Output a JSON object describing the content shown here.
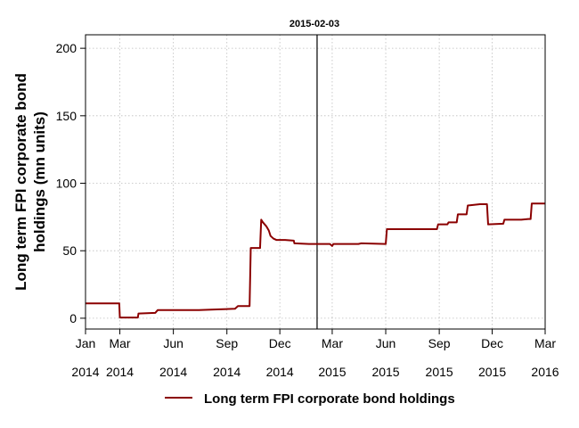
{
  "chart_data": {
    "type": "line",
    "title": "2015-02-03",
    "ylabel_lines": [
      "Long term FPI corporate bond",
      "holdings (mn units)"
    ],
    "ylim": [
      -8,
      210
    ],
    "y_ticks": [
      0,
      50,
      100,
      150,
      200
    ],
    "xlim": [
      "2014-01-01",
      "2016-03-01"
    ],
    "x_ticks": [
      {
        "date": "2014-01-01",
        "month": "Jan",
        "year": "2014"
      },
      {
        "date": "2014-03-01",
        "month": "Mar",
        "year": "2014"
      },
      {
        "date": "2014-06-01",
        "month": "Jun",
        "year": "2014"
      },
      {
        "date": "2014-09-01",
        "month": "Sep",
        "year": "2014"
      },
      {
        "date": "2014-12-01",
        "month": "Dec",
        "year": "2014"
      },
      {
        "date": "2015-03-01",
        "month": "Mar",
        "year": "2015"
      },
      {
        "date": "2015-06-01",
        "month": "Jun",
        "year": "2015"
      },
      {
        "date": "2015-09-01",
        "month": "Sep",
        "year": "2015"
      },
      {
        "date": "2015-12-01",
        "month": "Dec",
        "year": "2015"
      },
      {
        "date": "2016-03-01",
        "month": "Mar",
        "year": "2016"
      }
    ],
    "grid": true,
    "vline": "2015-02-03",
    "legend": {
      "position": "bottom"
    },
    "series": [
      {
        "name": "Long term FPI corporate bond holdings",
        "color": "#8b0000",
        "points": [
          [
            "2014-01-01",
            11
          ],
          [
            "2014-02-28",
            11
          ],
          [
            "2014-03-01",
            0.5
          ],
          [
            "2014-04-01",
            0.5
          ],
          [
            "2014-04-02",
            3.5
          ],
          [
            "2014-05-01",
            4
          ],
          [
            "2014-05-05",
            6
          ],
          [
            "2014-06-15",
            6
          ],
          [
            "2014-07-15",
            6
          ],
          [
            "2014-08-15",
            6.5
          ],
          [
            "2014-09-15",
            7
          ],
          [
            "2014-09-20",
            9
          ],
          [
            "2014-10-10",
            9
          ],
          [
            "2014-10-12",
            52
          ],
          [
            "2014-10-28",
            52
          ],
          [
            "2014-10-30",
            73
          ],
          [
            "2014-11-02",
            71
          ],
          [
            "2014-11-08",
            68
          ],
          [
            "2014-11-12",
            65
          ],
          [
            "2014-11-15",
            61
          ],
          [
            "2014-11-20",
            59
          ],
          [
            "2014-11-25",
            58
          ],
          [
            "2014-12-10",
            58
          ],
          [
            "2014-12-25",
            57.5
          ],
          [
            "2014-12-26",
            55.5
          ],
          [
            "2015-01-20",
            55
          ],
          [
            "2015-02-03",
            55
          ],
          [
            "2015-02-25",
            55
          ],
          [
            "2015-03-01",
            53.5
          ],
          [
            "2015-03-03",
            55
          ],
          [
            "2015-04-15",
            55
          ],
          [
            "2015-04-20",
            55.5
          ],
          [
            "2015-06-01",
            55
          ],
          [
            "2015-06-03",
            66
          ],
          [
            "2015-08-28",
            66
          ],
          [
            "2015-08-30",
            69.5
          ],
          [
            "2015-09-15",
            69.5
          ],
          [
            "2015-09-17",
            71
          ],
          [
            "2015-10-01",
            71
          ],
          [
            "2015-10-03",
            77
          ],
          [
            "2015-10-18",
            77
          ],
          [
            "2015-10-20",
            83.5
          ],
          [
            "2015-11-10",
            84.5
          ],
          [
            "2015-11-22",
            84.5
          ],
          [
            "2015-11-24",
            69.5
          ],
          [
            "2015-12-20",
            70
          ],
          [
            "2015-12-22",
            73
          ],
          [
            "2016-01-20",
            73
          ],
          [
            "2016-02-01",
            73.5
          ],
          [
            "2016-02-05",
            73.5
          ],
          [
            "2016-02-07",
            85
          ],
          [
            "2016-03-01",
            85
          ]
        ]
      }
    ]
  }
}
